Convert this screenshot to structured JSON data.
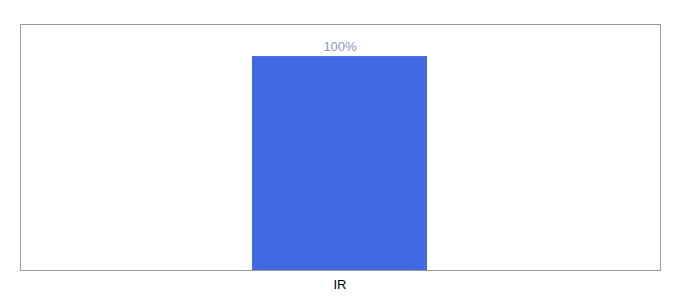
{
  "chart_data": {
    "type": "bar",
    "categories": [
      "IR"
    ],
    "values": [
      100
    ],
    "value_labels": [
      "100%"
    ],
    "data_labels": true,
    "color": "#4169e1",
    "ylim": [
      0,
      115
    ],
    "tick_labels": "x"
  }
}
